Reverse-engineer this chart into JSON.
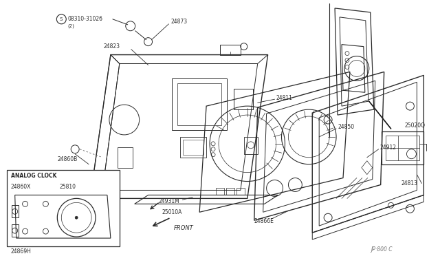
{
  "bg_color": "#ffffff",
  "line_color": "#2a2a2a",
  "fig_width": 6.4,
  "fig_height": 3.72,
  "dpi": 100,
  "labels": {
    "08310": "©08310-31026",
    "08310_sub": "(2)",
    "24873": "24873",
    "24823": "24823",
    "24811": "24811",
    "24850": "24850",
    "24912": "24912",
    "24813": "24813",
    "24931M": "24931M",
    "25010A": "25010A",
    "24866E": "24866E",
    "24860B": "24860B",
    "25020Q": "25020Q",
    "ANALOG_CLOCK": "ANALOG CLOCK",
    "24860X": "24860X",
    "25810": "25810",
    "24869H": "24869H",
    "JP800": "JP·800 C",
    "FRONT": "FRONT"
  }
}
